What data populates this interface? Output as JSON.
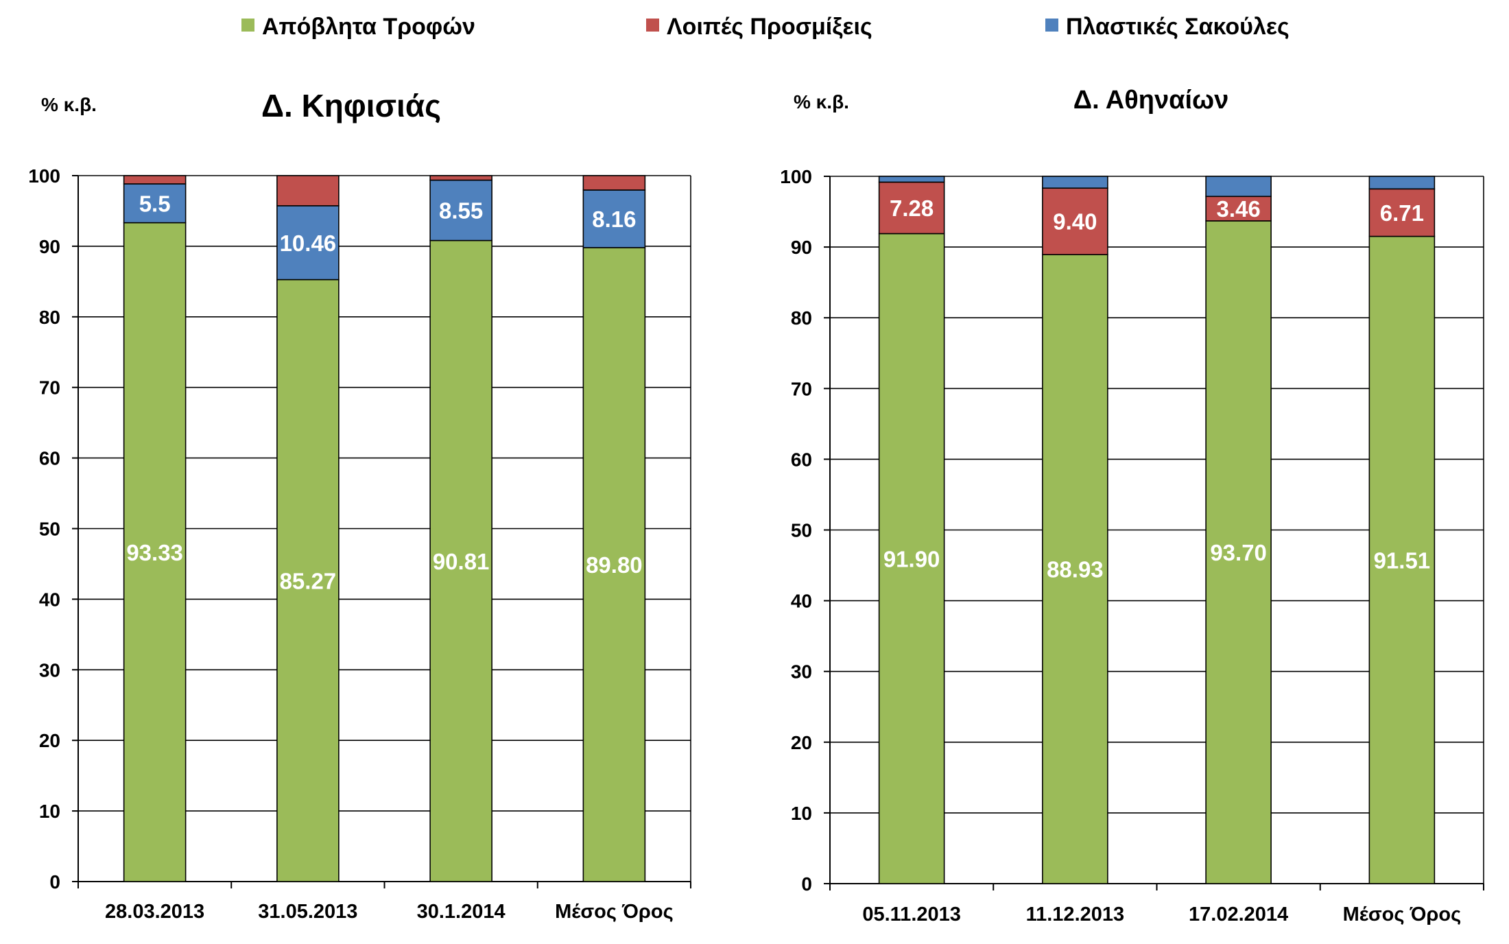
{
  "legend": [
    {
      "label": "Απόβλητα Τροφών",
      "color": "#9BBB59"
    },
    {
      "label": "Λοιπές Προσμίξεις",
      "color": "#C0504D"
    },
    {
      "label": "Πλαστικές Σακούλες",
      "color": "#4F81BD"
    }
  ],
  "chart_data": [
    {
      "type": "bar",
      "stacked": true,
      "title": "Δ. Κηφισιάς",
      "ylabel": "% κ.β.",
      "ylim": [
        0,
        100
      ],
      "yticks": [
        0,
        10,
        20,
        30,
        40,
        50,
        60,
        70,
        80,
        90,
        100
      ],
      "grid": true,
      "legend_position": "top",
      "categories": [
        "28.03.2013",
        "31.05.2013",
        "30.1.2014",
        "Μέσος Όρος"
      ],
      "series": [
        {
          "name": "Απόβλητα Τροφών",
          "color": "#9BBB59",
          "values": [
            93.33,
            85.27,
            90.81,
            89.8
          ],
          "labels": [
            "93.33",
            "85.27",
            "90.81",
            "89.80"
          ]
        },
        {
          "name": "Πλαστικές Σακούλες",
          "color": "#4F81BD",
          "values": [
            5.5,
            10.46,
            8.55,
            8.16
          ],
          "labels": [
            "5.5",
            "10.46",
            "8.55",
            "8.16"
          ]
        },
        {
          "name": "Λοιπές Προσμίξεις",
          "color": "#C0504D",
          "values": [
            1.17,
            4.27,
            0.64,
            2.04
          ],
          "labels": [
            "",
            "",
            "",
            ""
          ]
        }
      ]
    },
    {
      "type": "bar",
      "stacked": true,
      "title": "Δ. Αθηναίων",
      "ylabel": "% κ.β.",
      "ylim": [
        0,
        100
      ],
      "yticks": [
        0,
        10,
        20,
        30,
        40,
        50,
        60,
        70,
        80,
        90,
        100
      ],
      "grid": true,
      "legend_position": "top",
      "categories": [
        "05.11.2013",
        "11.12.2013",
        "17.02.2014",
        "Μέσος Όρος"
      ],
      "series": [
        {
          "name": "Απόβλητα Τροφών",
          "color": "#9BBB59",
          "values": [
            91.9,
            88.93,
            93.7,
            91.51
          ],
          "labels": [
            "91.90",
            "88.93",
            "93.70",
            "91.51"
          ]
        },
        {
          "name": "Λοιπές Προσμίξεις",
          "color": "#C0504D",
          "values": [
            7.28,
            9.4,
            3.46,
            6.71
          ],
          "labels": [
            "7.28",
            "9.40",
            "3.46",
            "6.71"
          ]
        },
        {
          "name": "Πλαστικές Σακούλες",
          "color": "#4F81BD",
          "values": [
            0.82,
            1.67,
            2.84,
            1.78
          ],
          "labels": [
            "",
            "",
            "",
            ""
          ]
        }
      ]
    }
  ]
}
